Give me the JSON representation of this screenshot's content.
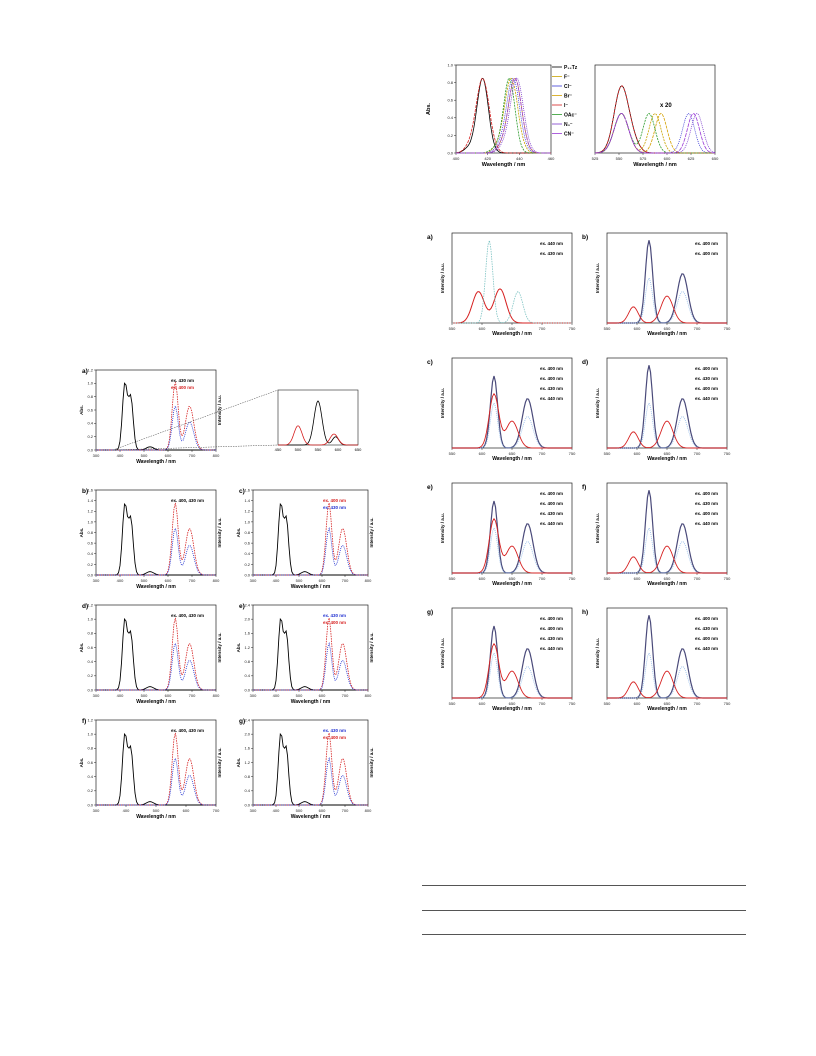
{
  "figure_top": {
    "ylabel": "Abs.",
    "left_xlabel": "Wavelength / nm",
    "right_xlabel": "Wavelength / nm",
    "left_xticks": [
      "400",
      "420",
      "440",
      "460"
    ],
    "right_xticks": [
      "525",
      "550",
      "575",
      "600",
      "625",
      "650"
    ],
    "yticks": [
      "0.0",
      "0.2",
      "0.4",
      "0.6",
      "0.8",
      "1.0"
    ],
    "scale_note": "x 20",
    "legend": [
      "P₁₃Tz",
      "F⁻",
      "Cl⁻",
      "Br⁻",
      "I⁻",
      "OAc⁻",
      "N₃⁻",
      "CN⁻"
    ],
    "colors": {
      "P13Tz": "#000000",
      "F": "#c9a300",
      "Cl": "#3b3bd6",
      "Br": "#d4a000",
      "I": "#d62020",
      "OAc": "#2a9a2a",
      "N3": "#7a3acc",
      "CN": "#9a3ad6"
    }
  },
  "figure_left": {
    "panels": [
      {
        "id": "a",
        "label": "a)",
        "left_ylabel": "Abs.",
        "right_ylabel": "Intensity / a.u.",
        "xlabel": "Wavelength / nm",
        "xticks": [
          "300",
          "400",
          "500",
          "600",
          "700",
          "800"
        ],
        "yticks": [
          "0.0",
          "0.2",
          "0.4",
          "0.6",
          "0.8",
          "1.0",
          "1.2"
        ],
        "ann": [
          {
            "text": "ex. 430 nm",
            "color": "#000000"
          },
          {
            "text": "ex. 400 nm",
            "color": "#d62020"
          }
        ]
      },
      {
        "id": "b",
        "label": "b)",
        "left_ylabel": "Abs.",
        "right_ylabel": "Intensity / a.u.",
        "xlabel": "Wavelength / nm",
        "xticks": [
          "300",
          "400",
          "500",
          "600",
          "700",
          "800"
        ],
        "yticks": [
          "0.0",
          "0.2",
          "0.4",
          "0.6",
          "0.8",
          "1.0",
          "1.2",
          "1.4",
          "1.6"
        ],
        "ann": [
          {
            "text": "ex. 400, 430 nm",
            "color": "#000000"
          }
        ]
      },
      {
        "id": "c",
        "label": "c)",
        "left_ylabel": "Abs.",
        "right_ylabel": "Intensity / a.u.",
        "xlabel": "Wavelength / nm",
        "xticks": [
          "300",
          "400",
          "500",
          "600",
          "700",
          "800"
        ],
        "yticks": [
          "0.0",
          "0.2",
          "0.4",
          "0.6",
          "0.8",
          "1.0",
          "1.2",
          "1.4",
          "1.6"
        ],
        "ann": [
          {
            "text": "ex. 400 nm",
            "color": "#d62020"
          },
          {
            "text": "ex. 430 nm",
            "color": "#2030d0"
          }
        ]
      },
      {
        "id": "d",
        "label": "d)",
        "left_ylabel": "Abs.",
        "right_ylabel": "Intensity / a.u.",
        "xlabel": "Wavelength / nm",
        "xticks": [
          "300",
          "400",
          "500",
          "600",
          "700",
          "800"
        ],
        "yticks": [
          "0.0",
          "0.2",
          "0.4",
          "0.6",
          "0.8",
          "1.0",
          "1.2"
        ],
        "ann": [
          {
            "text": "ex. 400, 430 nm",
            "color": "#000000"
          }
        ]
      },
      {
        "id": "e",
        "label": "e)",
        "left_ylabel": "Abs.",
        "right_ylabel": "Intensity / a.u.",
        "xlabel": "Wavelength / nm",
        "xticks": [
          "300",
          "400",
          "500",
          "600",
          "700",
          "800"
        ],
        "yticks": [
          "0.0",
          "0.4",
          "0.8",
          "1.2",
          "1.6",
          "2.0",
          "2.4"
        ],
        "ann": [
          {
            "text": "ex. 430 nm",
            "color": "#2030d0"
          },
          {
            "text": "ex. 400 nm",
            "color": "#d62020"
          }
        ]
      },
      {
        "id": "f",
        "label": "f)",
        "left_ylabel": "Abs.",
        "right_ylabel": "Intensity / a.u.",
        "xlabel": "Wavelength / nm",
        "xticks": [
          "300",
          "400",
          "500",
          "600",
          "700"
        ],
        "yticks": [
          "0.0",
          "0.2",
          "0.4",
          "0.6",
          "0.8",
          "1.0",
          "1.2"
        ],
        "ann": [
          {
            "text": "ex. 400, 430 nm",
            "color": "#000000"
          }
        ]
      },
      {
        "id": "g",
        "label": "g)",
        "left_ylabel": "Abs.",
        "right_ylabel": "Intensity / a.u.",
        "xlabel": "Wavelength / nm",
        "xticks": [
          "300",
          "400",
          "500",
          "600",
          "700",
          "800"
        ],
        "yticks": [
          "0.0",
          "0.4",
          "0.8",
          "1.2",
          "1.6",
          "2.0",
          "2.4"
        ],
        "ann": [
          {
            "text": "ex. 430 nm",
            "color": "#2030d0"
          },
          {
            "text": "ex. 400 nm",
            "color": "#d62020"
          }
        ]
      }
    ],
    "inset": {
      "xticks": [
        "450",
        "500",
        "550",
        "600",
        "650"
      ]
    }
  },
  "figure_right": {
    "ylabel": "Intensity / a.u.",
    "xlabel": "Wavelength / nm",
    "xticks": [
      "550",
      "600",
      "650",
      "700",
      "750"
    ],
    "panels": [
      {
        "id": "a",
        "label": "a)",
        "ann": [
          "ex. 440 nm",
          "ex. 430 nm"
        ]
      },
      {
        "id": "b",
        "label": "b)",
        "ann": [
          "ex. 400 nm",
          "ex. 400 nm"
        ]
      },
      {
        "id": "c",
        "label": "c)",
        "ann": [
          "ex. 400 nm",
          "ex. 400 nm",
          "ex. 430 nm",
          "ex. 440 nm"
        ]
      },
      {
        "id": "d",
        "label": "d)",
        "ann": [
          "ex. 400 nm",
          "ex. 430 nm",
          "ex. 400 nm",
          "ex. 440 nm"
        ]
      },
      {
        "id": "e",
        "label": "e)",
        "ann": [
          "ex. 400 nm",
          "ex. 400 nm",
          "ex. 430 nm",
          "ex. 440 nm"
        ]
      },
      {
        "id": "f",
        "label": "f)",
        "ann": [
          "ex. 400 nm",
          "ex. 430 nm",
          "ex. 400 nm",
          "ex. 440 nm"
        ]
      },
      {
        "id": "g",
        "label": "g)",
        "ann": [
          "ex. 400 nm",
          "ex. 400 nm",
          "ex. 430 nm",
          "ex. 440 nm"
        ]
      },
      {
        "id": "h",
        "label": "h)",
        "ann": [
          "ex. 400 nm",
          "ex. 430 nm",
          "ex. 400 nm",
          "ex. 440 nm"
        ]
      }
    ]
  }
}
